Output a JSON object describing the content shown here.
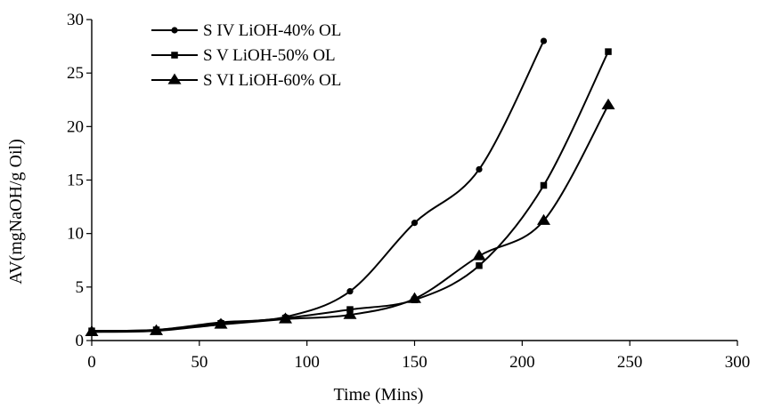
{
  "chart_data": {
    "type": "line",
    "title": "",
    "xlabel": "Time (Mins)",
    "ylabel": "AV(mgNaOH/g Oil)",
    "xlim": [
      0,
      300
    ],
    "ylim": [
      0,
      30
    ],
    "xticks": [
      0,
      50,
      100,
      150,
      200,
      250,
      300
    ],
    "yticks": [
      0,
      5,
      10,
      15,
      20,
      25,
      30
    ],
    "grid": false,
    "legend_position": "top-left",
    "series": [
      {
        "name": "S IV LiOH-40% OL",
        "marker": "circle",
        "x": [
          0,
          30,
          60,
          90,
          120,
          150,
          180,
          210
        ],
        "y": [
          0.9,
          1.0,
          1.7,
          2.2,
          4.6,
          11.0,
          16.0,
          28.0
        ]
      },
      {
        "name": "S V LiOH-50% OL",
        "marker": "square",
        "x": [
          0,
          30,
          60,
          90,
          120,
          150,
          180,
          210,
          240
        ],
        "y": [
          0.9,
          1.0,
          1.6,
          2.1,
          2.9,
          3.8,
          7.0,
          14.5,
          27.0
        ]
      },
      {
        "name": "S VI LiOH-60% OL",
        "marker": "triangle",
        "x": [
          0,
          30,
          60,
          90,
          120,
          150,
          180,
          210,
          240
        ],
        "y": [
          0.8,
          0.9,
          1.5,
          2.0,
          2.4,
          3.9,
          7.9,
          11.2,
          22.0
        ]
      }
    ]
  }
}
